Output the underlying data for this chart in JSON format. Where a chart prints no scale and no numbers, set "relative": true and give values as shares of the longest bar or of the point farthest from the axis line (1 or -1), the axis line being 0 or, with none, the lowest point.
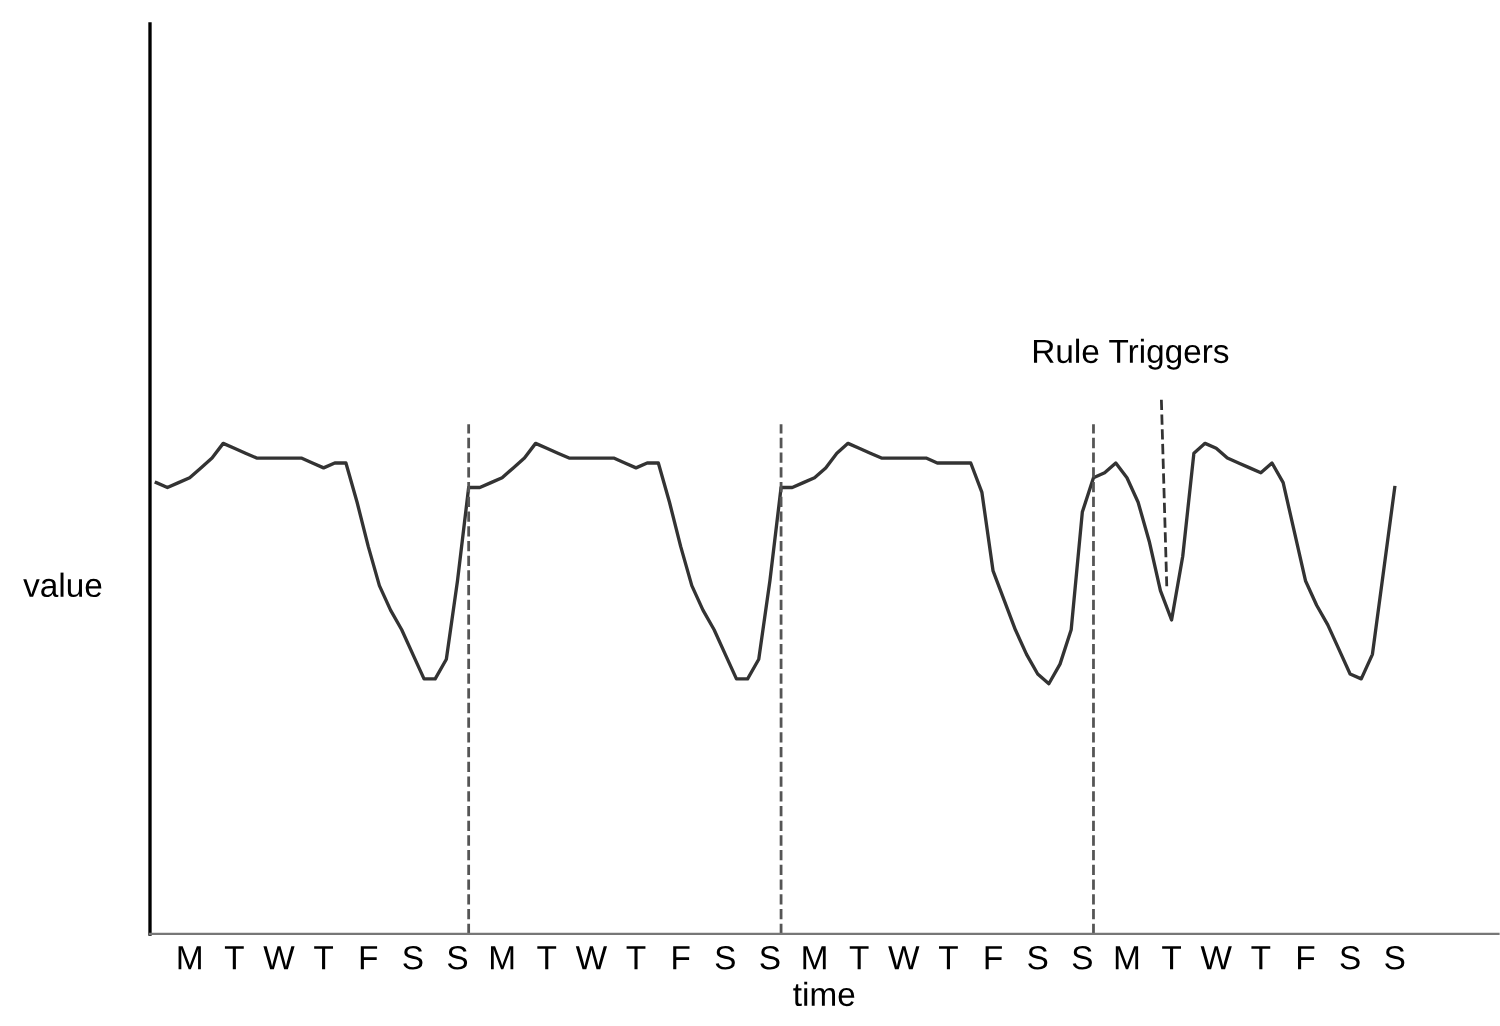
{
  "chart_data": {
    "type": "line",
    "relative": true,
    "xlabel": "time",
    "ylabel": "value",
    "categories": [
      null,
      null,
      null,
      "M",
      null,
      null,
      null,
      "T",
      null,
      null,
      null,
      "W",
      null,
      null,
      null,
      "T",
      null,
      null,
      null,
      "F",
      null,
      null,
      null,
      "S",
      null,
      null,
      null,
      "S",
      null,
      null,
      null,
      "M",
      null,
      null,
      null,
      "T",
      null,
      null,
      null,
      "W",
      null,
      null,
      null,
      "T",
      null,
      null,
      null,
      "F",
      null,
      null,
      null,
      "S",
      null,
      null,
      null,
      "S",
      null,
      null,
      null,
      "M",
      null,
      null,
      null,
      "T",
      null,
      null,
      null,
      "W",
      null,
      null,
      null,
      "T",
      null,
      null,
      null,
      "F",
      null,
      null,
      null,
      "S",
      null,
      null,
      null,
      "S",
      null,
      null,
      null,
      "M",
      null,
      null,
      null,
      "T",
      null,
      null,
      null,
      "W",
      null,
      null,
      null,
      "T",
      null,
      null,
      null,
      "F",
      null,
      null,
      null,
      "S",
      null,
      null,
      null,
      "S"
    ],
    "series": [
      {
        "color": "#333333",
        "values": [
          0.92,
          0.91,
          0.92,
          0.93,
          0.95,
          0.97,
          1.0,
          0.99,
          0.98,
          0.97,
          0.97,
          0.97,
          0.97,
          0.97,
          0.96,
          0.95,
          0.96,
          0.96,
          0.88,
          0.79,
          0.71,
          0.66,
          0.62,
          0.57,
          0.52,
          0.52,
          0.56,
          0.72,
          0.91,
          0.91,
          0.92,
          0.93,
          0.95,
          0.97,
          1.0,
          0.99,
          0.98,
          0.97,
          0.97,
          0.97,
          0.97,
          0.97,
          0.96,
          0.95,
          0.96,
          0.96,
          0.88,
          0.79,
          0.71,
          0.66,
          0.62,
          0.57,
          0.52,
          0.52,
          0.56,
          0.72,
          0.91,
          0.91,
          0.92,
          0.93,
          0.95,
          0.98,
          1.0,
          0.99,
          0.98,
          0.97,
          0.97,
          0.97,
          0.97,
          0.97,
          0.96,
          0.96,
          0.96,
          0.96,
          0.9,
          0.74,
          0.68,
          0.62,
          0.57,
          0.53,
          0.51,
          0.55,
          0.62,
          0.86,
          0.93,
          0.94,
          0.96,
          0.93,
          0.88,
          0.8,
          0.7,
          0.64,
          0.77,
          0.98,
          1.0,
          0.99,
          0.97,
          0.96,
          0.95,
          0.94,
          0.96,
          0.92,
          0.82,
          0.72,
          0.67,
          0.63,
          0.58,
          0.53,
          0.52,
          0.57,
          0.74,
          0.91
        ]
      }
    ],
    "annotations": [
      "Rule Triggers"
    ],
    "grid": false,
    "legend": false,
    "marker": "none",
    "line_style": "solid"
  }
}
